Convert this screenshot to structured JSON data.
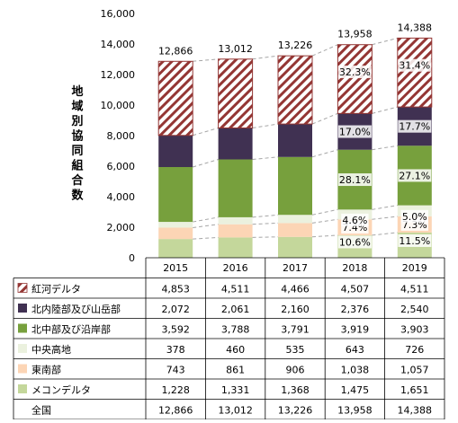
{
  "chart_data": {
    "type": "bar",
    "stacked": true,
    "ylabel": "地域別協同組合数",
    "ylim": [
      0,
      16000
    ],
    "yticks": [
      "0",
      "2,000",
      "4,000",
      "6,000",
      "8,000",
      "10,000",
      "12,000",
      "14,000",
      "16,000"
    ],
    "categories": [
      "2015",
      "2016",
      "2017",
      "2018",
      "2019"
    ],
    "series": [
      {
        "name": "メコンデルタ",
        "values": [
          1228,
          1331,
          1368,
          1475,
          1651
        ],
        "display": [
          "1,228",
          "1,331",
          "1,368",
          "1,475",
          "1,651"
        ],
        "color": "#c4d79b",
        "pattern": "none"
      },
      {
        "name": "東南部",
        "values": [
          743,
          861,
          906,
          1038,
          1057
        ],
        "display": [
          "743",
          "861",
          "906",
          "1,038",
          "1,057"
        ],
        "color": "#fcd5b5",
        "pattern": "none"
      },
      {
        "name": "中央高地",
        "values": [
          378,
          460,
          535,
          643,
          726
        ],
        "display": [
          "378",
          "460",
          "535",
          "643",
          "726"
        ],
        "color": "#ebf1de",
        "pattern": "none"
      },
      {
        "name": "北中部及び沿岸部",
        "values": [
          3592,
          3788,
          3791,
          3919,
          3903
        ],
        "display": [
          "3,592",
          "3,788",
          "3,791",
          "3,919",
          "3,903"
        ],
        "color": "#77a03d",
        "pattern": "none"
      },
      {
        "name": "北内陸部及び山岳部",
        "values": [
          2072,
          2061,
          2160,
          2376,
          2540
        ],
        "display": [
          "2,072",
          "2,061",
          "2,160",
          "2,376",
          "2,540"
        ],
        "color": "#403152",
        "pattern": "none"
      },
      {
        "name": "紅河デルタ",
        "values": [
          4853,
          4511,
          4466,
          4507,
          4511
        ],
        "display": [
          "4,853",
          "4,511",
          "4,466",
          "4,507",
          "4,511"
        ],
        "color": "#943634",
        "pattern": "diagonal"
      }
    ],
    "totals": {
      "name": "全国",
      "values": [
        12866,
        13012,
        13226,
        13958,
        14388
      ],
      "display": [
        "12,866",
        "13,012",
        "13,226",
        "13,958",
        "14,388"
      ]
    },
    "percent_labels": {
      "2018": [
        "10.6%",
        "7.4%",
        "4.6%",
        "28.1%",
        "17.0%",
        "32.3%"
      ],
      "2019": [
        "11.5%",
        "7.3%",
        "5.0%",
        "27.1%",
        "17.7%",
        "31.4%"
      ]
    },
    "table_row_order": [
      "紅河デルタ",
      "北内陸部及び山岳部",
      "北中部及び沿岸部",
      "中央高地",
      "東南部",
      "メコンデルタ",
      "全国"
    ],
    "grid": false,
    "legend": "table"
  }
}
